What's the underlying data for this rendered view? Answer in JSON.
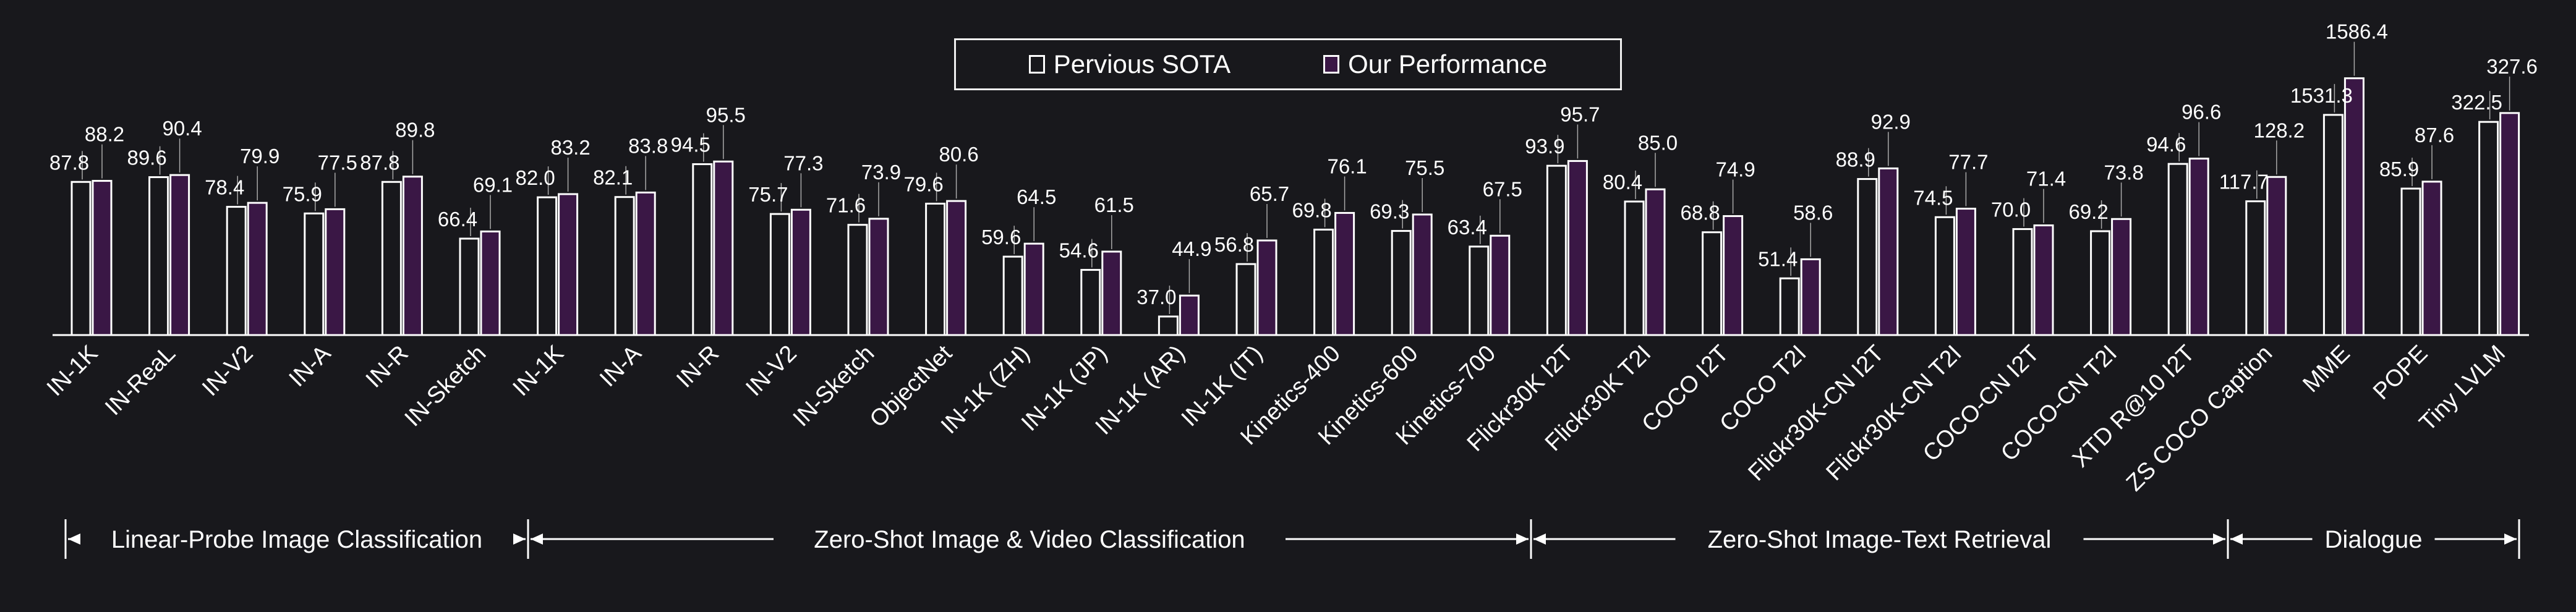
{
  "chart_data": {
    "type": "bar",
    "legend": [
      {
        "name": "Pervious SOTA",
        "color": "#18181c"
      },
      {
        "name": "Our Performance",
        "color": "#3a1745"
      }
    ],
    "categories": [
      "IN-1K",
      "IN-ReaL",
      "IN-V2",
      "IN-A",
      "IN-R",
      "IN-Sketch",
      "IN-1K",
      "IN-A",
      "IN-R",
      "IN-V2",
      "IN-Sketch",
      "ObjectNet",
      "IN-1K (ZH)",
      "IN-1K (JP)",
      "IN-1K (AR)",
      "IN-1K (IT)",
      "Kinetics-400",
      "Kinetics-600",
      "Kinetics-700",
      "Flickr30K I2T",
      "Flickr30K T2I",
      "COCO I2T",
      "COCO T2I",
      "Flickr30K-CN I2T",
      "Flickr30K-CN T2I",
      "COCO-CN I2T",
      "COCO-CN T2I",
      "XTD R@10 I2T",
      "ZS COCO Caption",
      "MME",
      "POPE",
      "Tiny LVLM"
    ],
    "series": [
      {
        "name": "Pervious SOTA",
        "values": [
          "87.8",
          "89.6",
          "78.4",
          "75.9",
          "87.8",
          "66.4",
          "82.0",
          "82.1",
          "94.5",
          "75.7",
          "71.6",
          "79.6",
          "59.6",
          "54.6",
          "37.0",
          "56.8",
          "69.8",
          "69.3",
          "63.4",
          "93.9",
          "80.4",
          "68.8",
          "51.4",
          "88.9",
          "74.5",
          "70.0",
          "69.2",
          "94.6",
          "117.7",
          "1531.3",
          "85.9",
          "322.5"
        ]
      },
      {
        "name": "Our Performance",
        "values": [
          "88.2",
          "90.4",
          "79.9",
          "77.5",
          "89.8",
          "69.1",
          "83.2",
          "83.8",
          "95.5",
          "77.3",
          "73.9",
          "80.6",
          "64.5",
          "61.5",
          "44.9",
          "65.7",
          "76.1",
          "75.5",
          "67.5",
          "95.7",
          "85.0",
          "74.9",
          "58.6",
          "92.9",
          "77.7",
          "71.4",
          "73.8",
          "96.6",
          "128.2",
          "1586.4",
          "87.6",
          "327.6"
        ]
      }
    ],
    "groups": [
      {
        "label": "Linear-Probe Image Classification",
        "start": 0,
        "end": 5
      },
      {
        "label": "Zero-Shot Image & Video Classification",
        "start": 6,
        "end": 18
      },
      {
        "label": "Zero-Shot Image-Text Retrieval",
        "start": 19,
        "end": 27
      },
      {
        "label": "Dialogue",
        "start": 28,
        "end": 31
      }
    ],
    "bar_height_scale": [
      0.7325,
      0.7595,
      0.6325,
      0.5909,
      0.7514,
      0.4135,
      0.6653,
      0.7106,
      0.8445,
      0.5508,
      0.5041,
      0.6395,
      0.3353,
      0.2654,
      0.0288,
      0.3777,
      0.4854,
      0.4739,
      0.4173,
      0.8475,
      0.6529,
      0.4606,
      0.2047,
      0.7775,
      0.5275,
      0.4604,
      0.4454,
      0.8238,
      0.1,
      0.135,
      0.05,
      0.1
    ],
    "ours_height_scale": [
      0.7409,
      0.7803,
      0.6588,
      0.6224,
      0.7838,
      0.4651,
      0.6938,
      0.7444,
      0.8704,
      0.5908,
      0.5632,
      0.659,
      0.3934,
      0.3655,
      0.1305,
      0.4766,
      0.5639,
      0.5507,
      0.4742,
      0.8748,
      0.7181,
      0.5394,
      0.3032,
      0.829,
      0.5889,
      0.4737,
      0.5141,
      0.8465,
      0.12,
      0.15,
      0.07,
      0.12
    ],
    "grid": false
  }
}
